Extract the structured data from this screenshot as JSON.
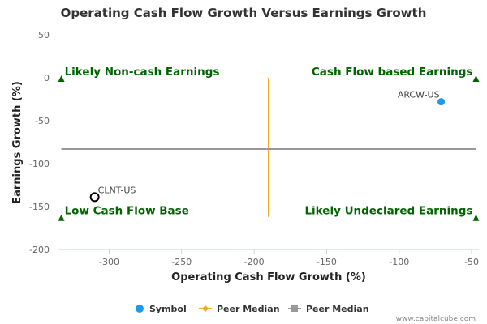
{
  "chart_data": {
    "type": "scatter",
    "title": "Operating Cash Flow Growth Versus Earnings Growth",
    "xlabel": "Operating Cash Flow Growth (%)",
    "ylabel": "Earnings Growth (%)",
    "xlim": [
      -335,
      -45
    ],
    "ylim": [
      -200,
      50
    ],
    "xticks": [
      -300,
      -250,
      -200,
      -150,
      -100,
      -50
    ],
    "yticks": [
      50,
      0,
      -50,
      -100,
      -150,
      -200
    ],
    "grid": false,
    "legend_position": "bottom",
    "points": [
      {
        "label": "ARCW-US",
        "x": -71,
        "y": -28,
        "style": "filled",
        "color": "#1E9BE6"
      },
      {
        "label": "CLNT-US",
        "x": -310,
        "y": -139,
        "style": "hollow",
        "color": "#000000"
      }
    ],
    "peer_median_x": -190,
    "peer_median_y": -83,
    "quadrant_labels": {
      "top_left": "Likely Non-cash Earnings",
      "top_right": "Cash Flow based Earnings",
      "bottom_left": "Low Cash Flow Base",
      "bottom_right": "Likely Undeclared Earnings"
    },
    "legend": [
      {
        "label": "Symbol",
        "marker": "circle",
        "color": "#1E9BE6"
      },
      {
        "label": "Peer Median",
        "marker": "diamond-line",
        "color": "#F5A623"
      },
      {
        "label": "Peer Median",
        "marker": "square-line",
        "color": "#999999"
      }
    ],
    "colors": {
      "vertical_median": "#F5A623",
      "horizontal_median": "#999999",
      "quadrant_text": "#006400",
      "triangle": "#006400",
      "axis": "#C0D0E0"
    }
  },
  "credit": "www.capitalcube.com"
}
